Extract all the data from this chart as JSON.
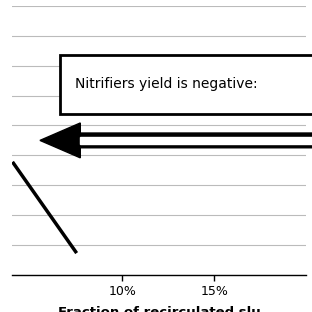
{
  "annotation_text": "Nitrifiers yield is negative:",
  "xlabel": "Fraction of recirculated slu",
  "xticks": [
    0.1,
    0.15
  ],
  "xtick_labels": [
    "10%",
    "15%"
  ],
  "ylim": [
    0.0,
    1.0
  ],
  "xlim": [
    0.04,
    0.2
  ],
  "background_color": "#ffffff",
  "grid_color": "#bbbbbb",
  "text_color": "#000000",
  "font_size_annotation": 10,
  "font_size_xlabel": 9.5,
  "font_size_xtick": 9
}
